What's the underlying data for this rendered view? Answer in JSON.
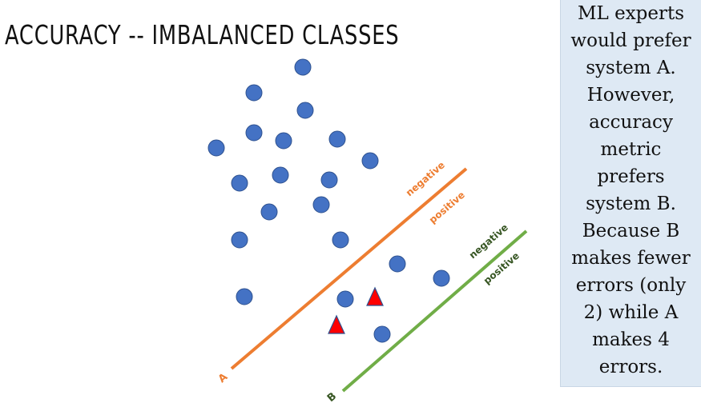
{
  "title": "Accuracy -- imbalanced classes",
  "note_lines": [
    "ML experts",
    "would prefer",
    "system A.",
    "However,",
    "accuracy",
    "metric",
    "prefers",
    "system B.",
    "Because B",
    "makes fewer",
    "errors (only",
    "2) while A",
    "makes 4",
    "errors."
  ],
  "colors": {
    "circle_fill": "#4472c4",
    "circle_stroke": "#2f528f",
    "triangle_fill": "#ff0000",
    "triangle_stroke": "#2f528f",
    "line_a": "#ed7d31",
    "line_b": "#70ad47",
    "line_b_label": "#375623",
    "note_background": "#dee9f4"
  },
  "boundary_a": {
    "name": "A",
    "label_upper": "negative",
    "label_lower": "positive"
  },
  "boundary_b": {
    "name": "B",
    "label_upper": "negative",
    "label_lower": "positive"
  },
  "icons": {
    "circle": "negative-example-circle",
    "triangle": "positive-example-triangle"
  }
}
